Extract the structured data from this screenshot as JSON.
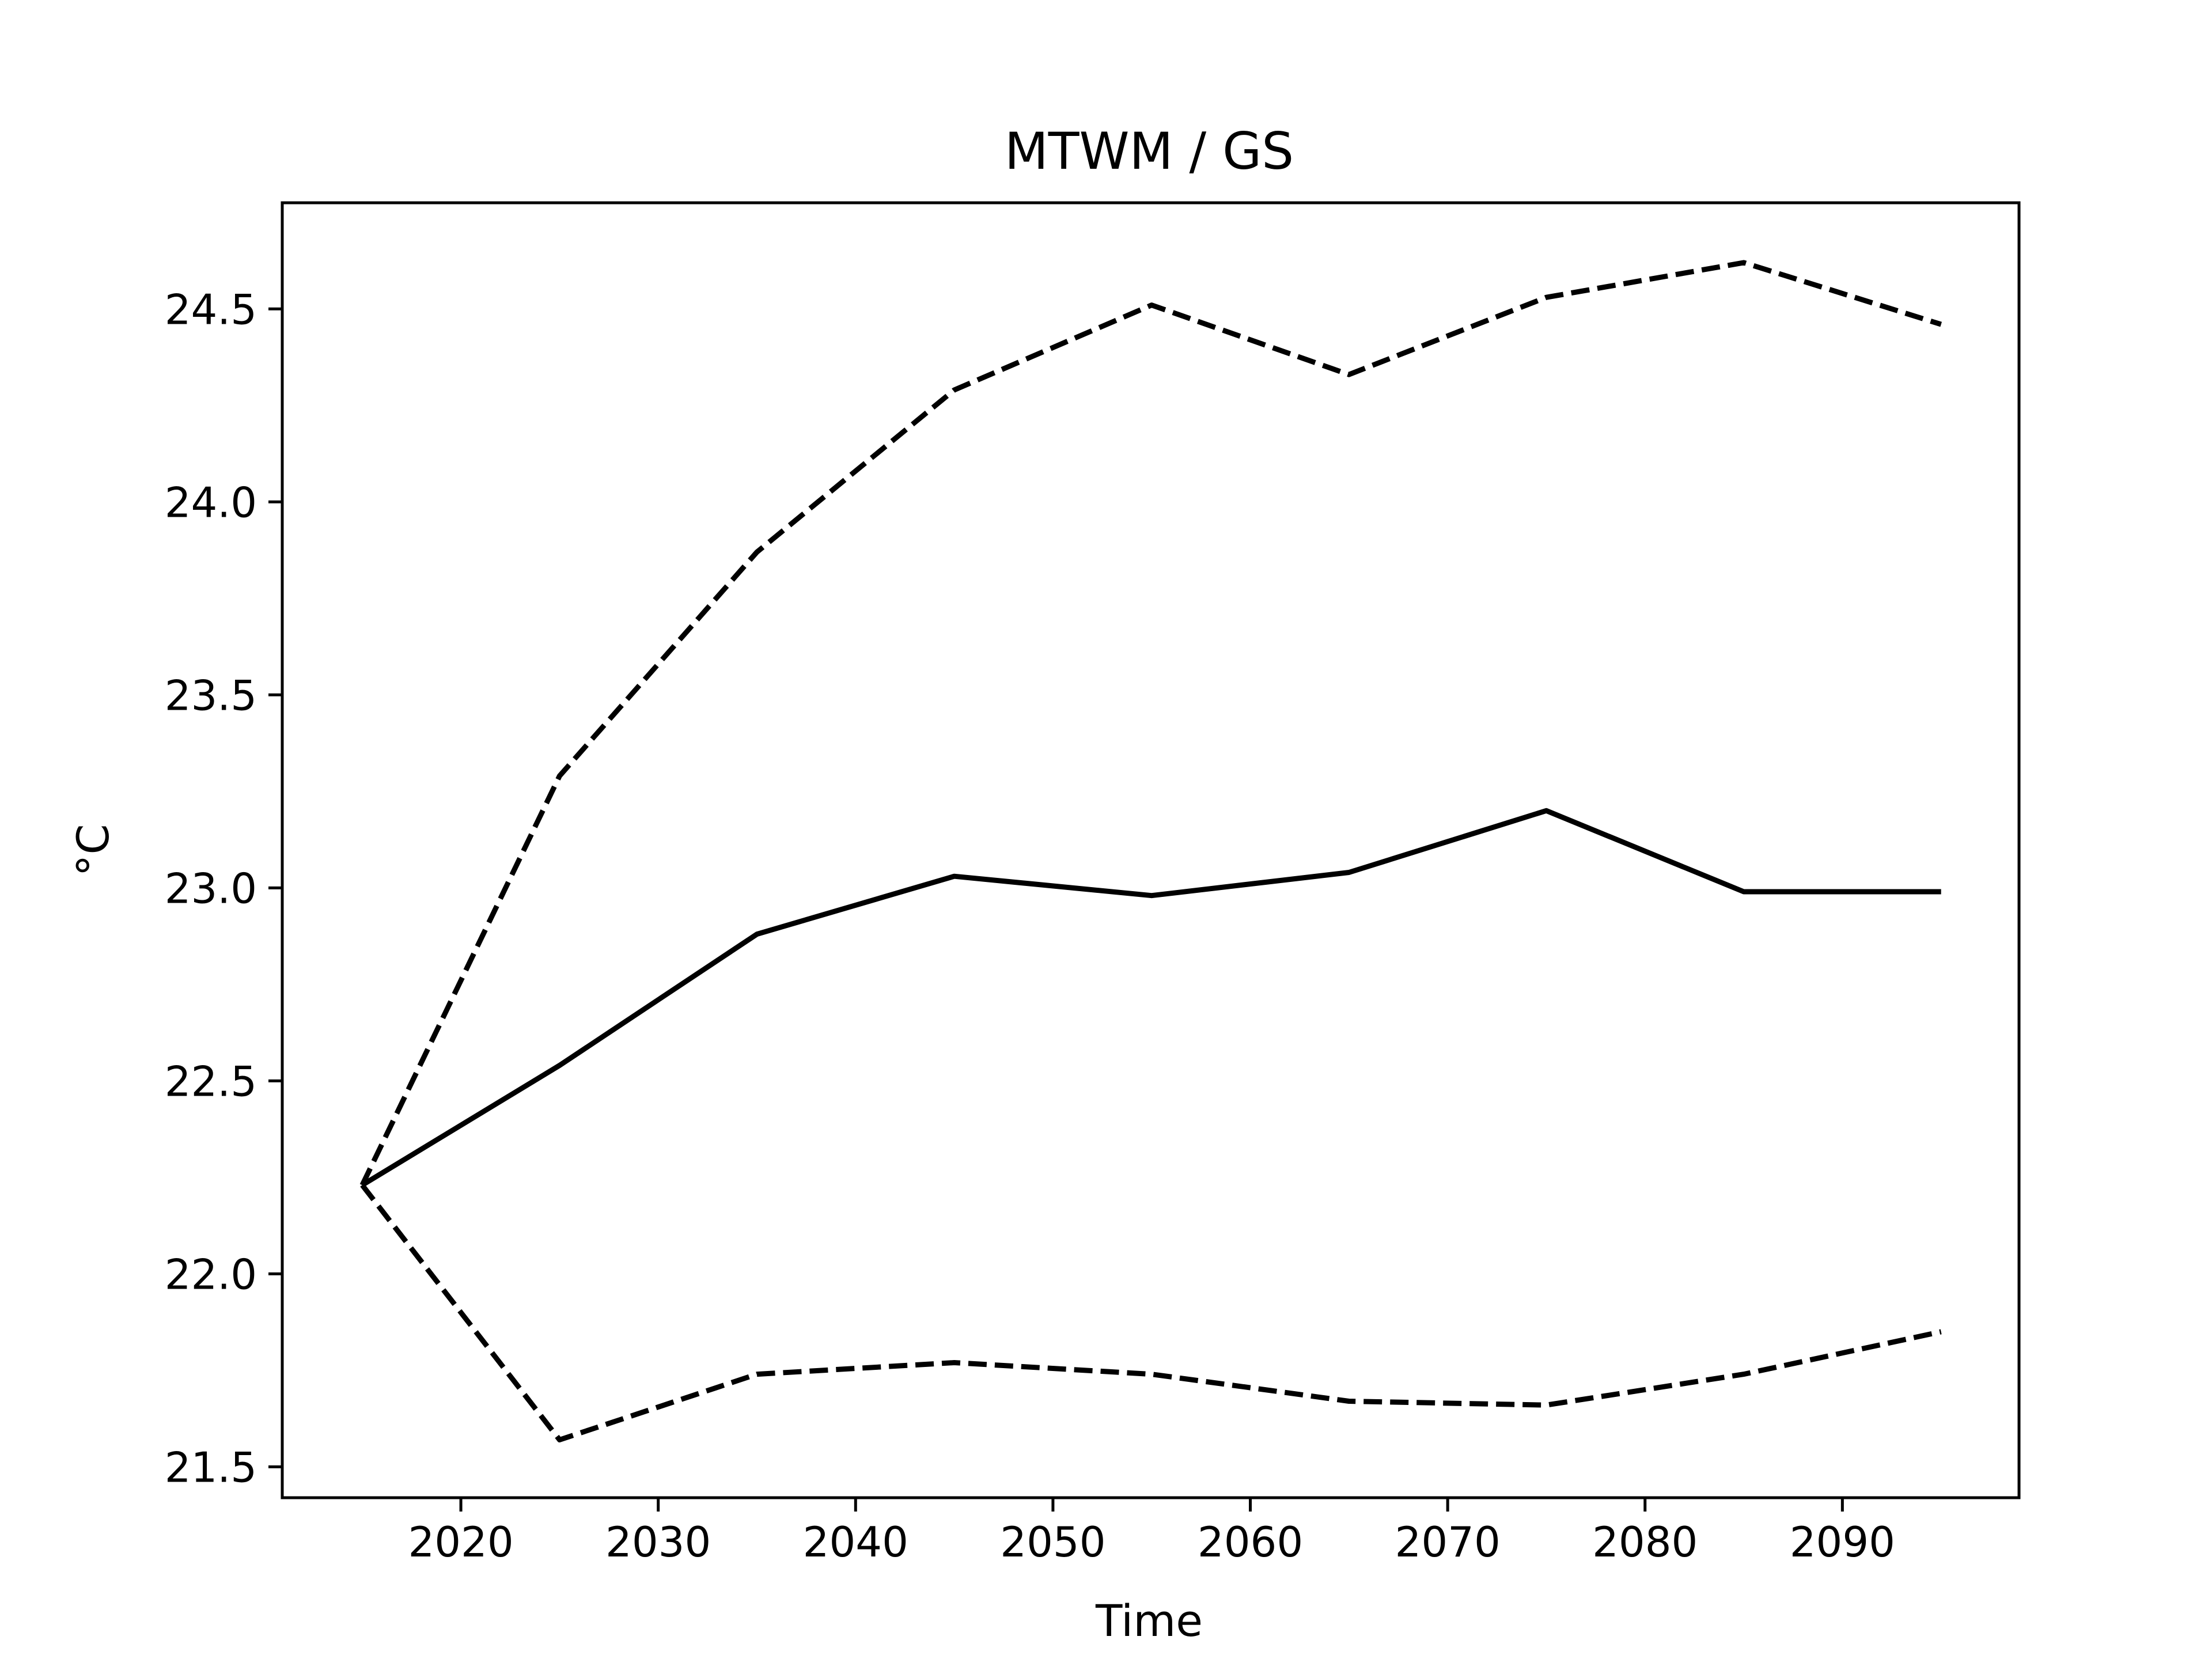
{
  "chart_data": {
    "type": "line",
    "title": "MTWM / GS",
    "xlabel": "Time",
    "ylabel": "°C",
    "xlim": [
      2010.95,
      2098.95
    ],
    "ylim": [
      21.42,
      24.775
    ],
    "x_ticks": [
      2020,
      2030,
      2040,
      2050,
      2060,
      2070,
      2080,
      2090
    ],
    "y_ticks": [
      21.5,
      22.0,
      22.5,
      23.0,
      23.5,
      24.0,
      24.5
    ],
    "y_tick_labels": [
      "21.5",
      "22.0",
      "22.5",
      "23.0",
      "23.5",
      "24.0",
      "24.5"
    ],
    "grid": false,
    "legend": "none",
    "x": [
      2015,
      2025,
      2035,
      2045,
      2055,
      2065,
      2075,
      2085,
      2095
    ],
    "series": [
      {
        "style": "dashed",
        "values": [
          22.23,
          23.29,
          23.87,
          24.29,
          24.51,
          24.33,
          24.53,
          24.62,
          24.46
        ]
      },
      {
        "style": "solid",
        "values": [
          22.23,
          22.54,
          22.88,
          23.03,
          22.98,
          23.04,
          23.2,
          22.99,
          22.99
        ]
      },
      {
        "style": "dashed",
        "values": [
          22.23,
          21.57,
          21.74,
          21.77,
          21.74,
          21.67,
          21.66,
          21.74,
          21.85
        ]
      }
    ],
    "line_color": "#000000"
  }
}
